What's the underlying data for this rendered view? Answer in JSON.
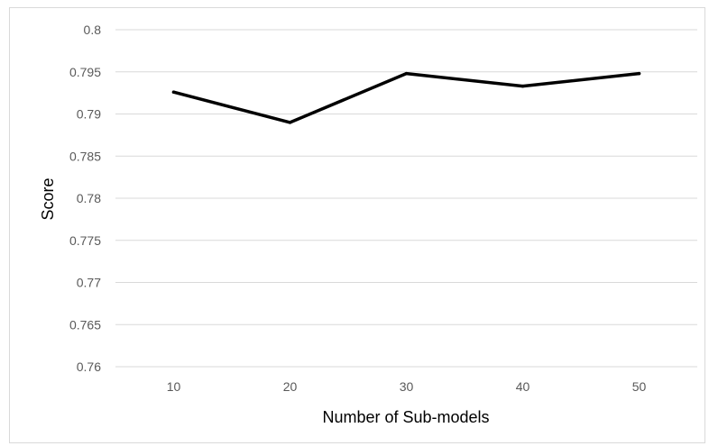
{
  "chart_data": {
    "type": "line",
    "title": "",
    "xlabel": "Number of Sub-models",
    "ylabel": "Score",
    "categories": [
      "10",
      "20",
      "30",
      "40",
      "50"
    ],
    "series": [
      {
        "values": [
          0.7926,
          0.789,
          0.7948,
          0.7933,
          0.7948
        ]
      }
    ],
    "ylim": [
      0.76,
      0.8
    ],
    "yticks": [
      "0.76",
      "0.765",
      "0.77",
      "0.775",
      "0.78",
      "0.785",
      "0.79",
      "0.795",
      "0.8"
    ],
    "grid": true,
    "legend": "none",
    "colors": {
      "line": "#000000",
      "grid": "#d9d9d9",
      "tick_text": "#595959"
    }
  }
}
